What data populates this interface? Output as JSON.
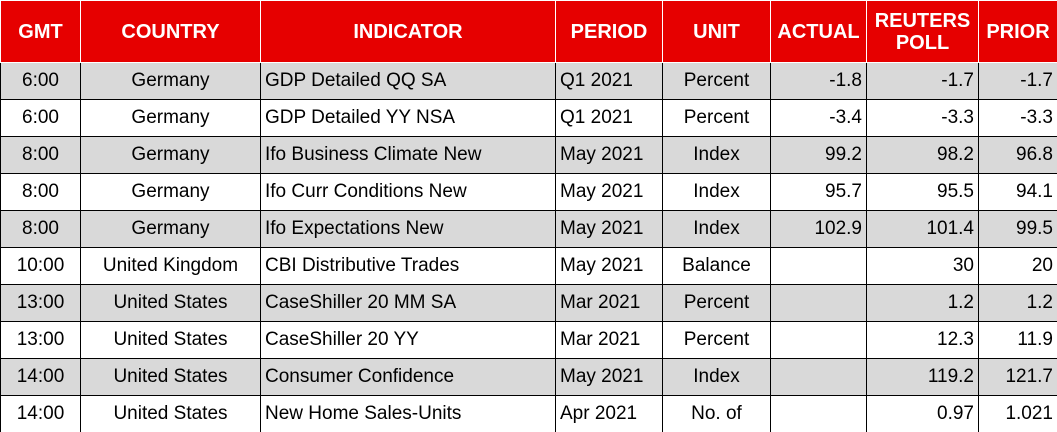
{
  "table": {
    "headers": [
      "GMT",
      "COUNTRY",
      "INDICATOR",
      "PERIOD",
      "UNIT",
      "ACTUAL",
      "REUTERS POLL",
      "PRIOR"
    ],
    "rows": [
      [
        "6:00",
        "Germany",
        "GDP Detailed QQ SA",
        "Q1 2021",
        "Percent",
        "-1.8",
        "-1.7",
        "-1.7"
      ],
      [
        "6:00",
        "Germany",
        "GDP Detailed YY NSA",
        "Q1 2021",
        "Percent",
        "-3.4",
        "-3.3",
        "-3.3"
      ],
      [
        "8:00",
        "Germany",
        "Ifo Business Climate New",
        "May 2021",
        "Index",
        "99.2",
        "98.2",
        "96.8"
      ],
      [
        "8:00",
        "Germany",
        "Ifo Curr Conditions New",
        "May 2021",
        "Index",
        "95.7",
        "95.5",
        "94.1"
      ],
      [
        "8:00",
        "Germany",
        "Ifo Expectations New",
        "May 2021",
        "Index",
        "102.9",
        "101.4",
        "99.5"
      ],
      [
        "10:00",
        "United Kingdom",
        "CBI Distributive Trades",
        "May 2021",
        "Balance",
        null,
        "30",
        "20"
      ],
      [
        "13:00",
        "United States",
        "CaseShiller 20 MM SA",
        "Mar 2021",
        "Percent",
        null,
        "1.2",
        "1.2"
      ],
      [
        "13:00",
        "United States",
        "CaseShiller 20 YY",
        "Mar 2021",
        "Percent",
        null,
        "12.3",
        "11.9"
      ],
      [
        "14:00",
        "United States",
        "Consumer Confidence",
        "May 2021",
        "Index",
        null,
        "119.2",
        "121.7"
      ],
      [
        "14:00",
        "United States",
        "New Home Sales-Units",
        "Apr 2021",
        "No. of",
        null,
        "0.97",
        "1.021"
      ]
    ]
  }
}
